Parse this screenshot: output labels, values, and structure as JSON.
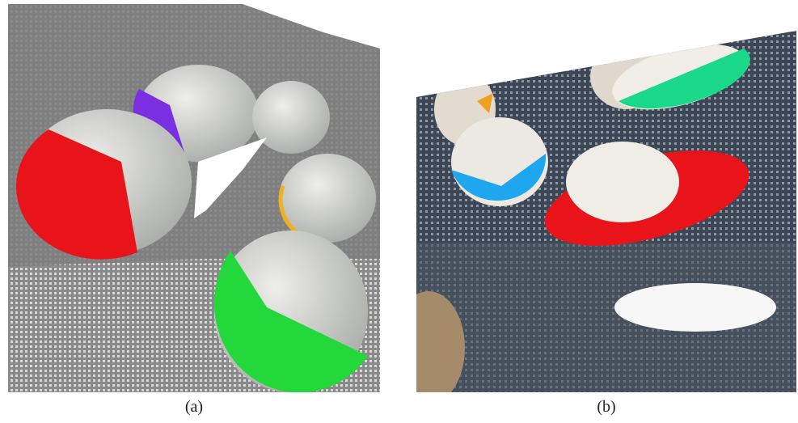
{
  "captions": [
    "(a)",
    "(b)"
  ]
}
